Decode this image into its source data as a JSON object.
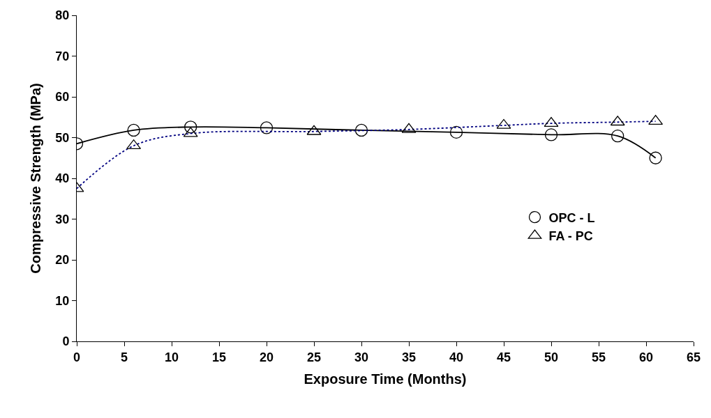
{
  "chart_data": {
    "type": "line",
    "xlabel": "Exposure Time (Months)",
    "ylabel": "Compressive Strength (MPa)",
    "xlim": [
      0,
      65
    ],
    "xticks": [
      0,
      5,
      10,
      15,
      20,
      25,
      30,
      35,
      40,
      45,
      50,
      55,
      60,
      65
    ],
    "ylim": [
      0,
      80
    ],
    "yticks": [
      0,
      10,
      20,
      30,
      40,
      50,
      60,
      70,
      80
    ],
    "legend": "center right",
    "series": [
      {
        "name": "OPC - L",
        "color": "#000000",
        "marker": "circle",
        "line_style": "solid",
        "x": [
          0,
          6,
          12,
          20,
          30,
          40,
          50,
          57,
          61
        ],
        "values": [
          48.5,
          51.8,
          52.6,
          52.4,
          51.8,
          51.3,
          50.7,
          50.4,
          45
        ]
      },
      {
        "name": "FA - PC",
        "color": "#000080",
        "marker": "triangle",
        "line_style": "dotted",
        "x": [
          0,
          6,
          12,
          25,
          35,
          45,
          50,
          57,
          61
        ],
        "values": [
          37.5,
          48,
          51,
          51.5,
          52,
          53,
          53.5,
          53.8,
          54
        ]
      }
    ]
  }
}
